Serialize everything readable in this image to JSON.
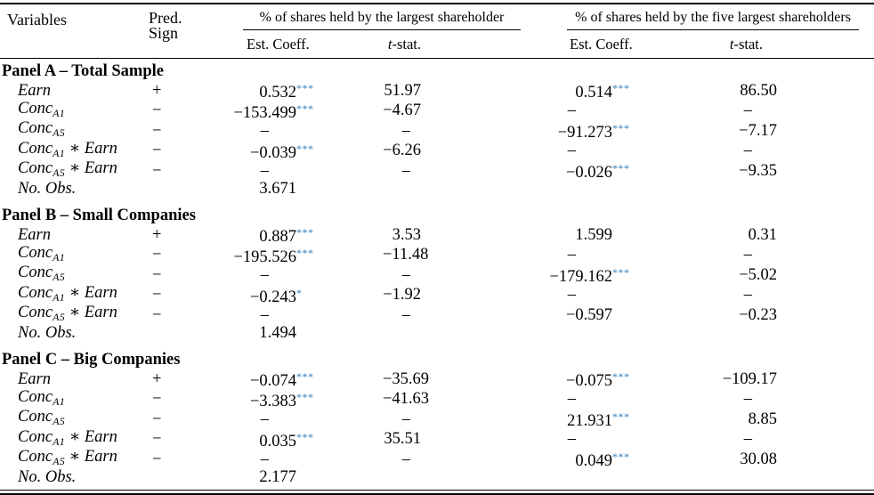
{
  "table": {
    "star_color": "#2f7dbc",
    "dash_char": "–",
    "operator": " ∗ ",
    "headers": {
      "variables": "Variables",
      "pred_line1": "Pred.",
      "pred_line2": "Sign",
      "group1": "% of shares held by the largest shareholder",
      "group2": "% of shares held by the five largest shareholders",
      "est_coeff": "Est. Coeff.",
      "t_stat_t": "t",
      "t_stat_rest": "-stat."
    },
    "panels": [
      {
        "title": "Panel A – Total Sample",
        "rows": [
          {
            "label": {
              "base": "Earn"
            },
            "pred": "+",
            "cells": [
              {
                "v": "0.532",
                "stars": "***"
              },
              {
                "v": "51.97"
              },
              {
                "v": "0.514",
                "stars": "***"
              },
              {
                "v": "86.50"
              }
            ]
          },
          {
            "label": {
              "base": "Conc",
              "sub": "A1"
            },
            "pred": "−",
            "cells": [
              {
                "v": "−153.499",
                "stars": "***"
              },
              {
                "v": "−4.67"
              },
              {
                "dash": true
              },
              {
                "dash": true
              }
            ]
          },
          {
            "label": {
              "base": "Conc",
              "sub": "A5"
            },
            "pred": "−",
            "cells": [
              {
                "dash": true
              },
              {
                "dash": true
              },
              {
                "v": "−91.273",
                "stars": "***"
              },
              {
                "v": "−7.17"
              }
            ]
          },
          {
            "label": {
              "base": "Conc",
              "sub": "A1",
              "times_earn": true
            },
            "pred": "−",
            "cells": [
              {
                "v": "−0.039",
                "stars": "***"
              },
              {
                "v": "−6.26"
              },
              {
                "dash": true
              },
              {
                "dash": true
              }
            ]
          },
          {
            "label": {
              "base": "Conc",
              "sub": "A5",
              "times_earn": true
            },
            "pred": "−",
            "cells": [
              {
                "dash": true
              },
              {
                "dash": true
              },
              {
                "v": "−0.026",
                "stars": "***"
              },
              {
                "v": "−9.35"
              }
            ]
          },
          {
            "label": {
              "base": "No. Obs."
            },
            "pred": "",
            "cells": [
              {
                "v": "3.671"
              },
              {},
              {},
              {}
            ]
          }
        ]
      },
      {
        "title": "Panel B – Small Companies",
        "rows": [
          {
            "label": {
              "base": "Earn"
            },
            "pred": "+",
            "cells": [
              {
                "v": "0.887",
                "stars": "***"
              },
              {
                "v": "3.53"
              },
              {
                "v": "1.599"
              },
              {
                "v": "0.31"
              }
            ]
          },
          {
            "label": {
              "base": "Conc",
              "sub": "A1"
            },
            "pred": "−",
            "cells": [
              {
                "v": "−195.526",
                "stars": "***"
              },
              {
                "v": "−11.48"
              },
              {
                "dash": true
              },
              {
                "dash": true
              }
            ]
          },
          {
            "label": {
              "base": "Conc",
              "sub": "A5"
            },
            "pred": "−",
            "cells": [
              {
                "dash": true
              },
              {
                "dash": true
              },
              {
                "v": "−179.162",
                "stars": "***"
              },
              {
                "v": "−5.02"
              }
            ]
          },
          {
            "label": {
              "base": "Conc",
              "sub": "A1",
              "times_earn": true
            },
            "pred": "−",
            "cells": [
              {
                "v": "−0.243",
                "stars": "*"
              },
              {
                "v": "−1.92"
              },
              {
                "dash": true
              },
              {
                "dash": true
              }
            ]
          },
          {
            "label": {
              "base": "Conc",
              "sub": "A5",
              "times_earn": true
            },
            "pred": "−",
            "cells": [
              {
                "dash": true
              },
              {
                "dash": true
              },
              {
                "v": "−0.597"
              },
              {
                "v": "−0.23"
              }
            ]
          },
          {
            "label": {
              "base": "No. Obs."
            },
            "pred": "",
            "cells": [
              {
                "v": "1.494"
              },
              {},
              {},
              {}
            ]
          }
        ]
      },
      {
        "title": "Panel C – Big Companies",
        "rows": [
          {
            "label": {
              "base": "Earn"
            },
            "pred": "+",
            "cells": [
              {
                "v": "−0.074",
                "stars": "***"
              },
              {
                "v": "−35.69"
              },
              {
                "v": "−0.075",
                "stars": "***"
              },
              {
                "v": "−109.17"
              }
            ]
          },
          {
            "label": {
              "base": "Conc",
              "sub": "A1"
            },
            "pred": "−",
            "cells": [
              {
                "v": "−3.383",
                "stars": "***"
              },
              {
                "v": "−41.63"
              },
              {
                "dash": true
              },
              {
                "dash": true
              }
            ]
          },
          {
            "label": {
              "base": "Conc",
              "sub": "A5"
            },
            "pred": "−",
            "cells": [
              {
                "dash": true
              },
              {
                "dash": true
              },
              {
                "v": "21.931",
                "stars": "***"
              },
              {
                "v": "8.85"
              }
            ]
          },
          {
            "label": {
              "base": "Conc",
              "sub": "A1",
              "times_earn": true
            },
            "pred": "−",
            "cells": [
              {
                "v": "0.035",
                "stars": "***"
              },
              {
                "v": "35.51"
              },
              {
                "dash": true
              },
              {
                "dash": true
              }
            ]
          },
          {
            "label": {
              "base": "Conc",
              "sub": "A5",
              "times_earn": true
            },
            "pred": "−",
            "cells": [
              {
                "dash": true
              },
              {
                "dash": true
              },
              {
                "v": "0.049",
                "stars": "***"
              },
              {
                "v": "30.08"
              }
            ]
          },
          {
            "label": {
              "base": "No. Obs."
            },
            "pred": "",
            "cells": [
              {
                "v": "2.177"
              },
              {},
              {},
              {}
            ]
          }
        ]
      }
    ]
  }
}
